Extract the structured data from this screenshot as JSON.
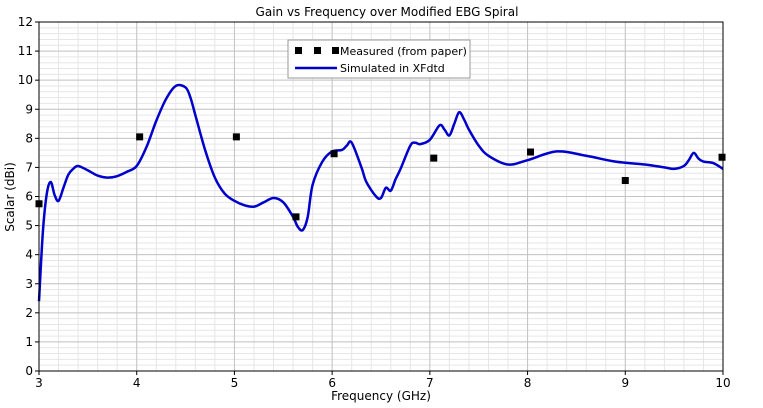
{
  "chart_data": {
    "type": "line",
    "title": "Gain vs Frequency over Modified EBG Spiral",
    "xlabel": "Frequency (GHz)",
    "ylabel": "Scalar (dBi)",
    "xlim": [
      3,
      10
    ],
    "ylim": [
      0,
      12
    ],
    "xticks": [
      "3",
      "4",
      "5",
      "6",
      "7",
      "8",
      "9",
      "10"
    ],
    "yticks": [
      "0",
      "1",
      "2",
      "3",
      "4",
      "5",
      "6",
      "7",
      "8",
      "9",
      "10",
      "11",
      "12"
    ],
    "grid": true,
    "legend_position": "top-center",
    "series": [
      {
        "name": "Measured (from paper)",
        "kind": "scatter",
        "marker": "square",
        "color": "#000000",
        "x": [
          3.0,
          4.03,
          5.02,
          5.63,
          6.02,
          7.04,
          8.03,
          9.0,
          9.99
        ],
        "y": [
          5.75,
          8.05,
          8.05,
          5.3,
          7.47,
          7.32,
          7.53,
          6.55,
          7.35
        ]
      },
      {
        "name": "Simulated in XFdtd",
        "kind": "line",
        "color": "#0000cc",
        "x": [
          3.0,
          3.04,
          3.08,
          3.12,
          3.16,
          3.2,
          3.25,
          3.3,
          3.35,
          3.4,
          3.5,
          3.6,
          3.7,
          3.8,
          3.9,
          4.0,
          4.1,
          4.2,
          4.3,
          4.4,
          4.5,
          4.55,
          4.6,
          4.7,
          4.8,
          4.9,
          5.0,
          5.1,
          5.2,
          5.3,
          5.4,
          5.5,
          5.6,
          5.65,
          5.7,
          5.75,
          5.8,
          5.9,
          6.0,
          6.1,
          6.15,
          6.2,
          6.3,
          6.35,
          6.45,
          6.5,
          6.55,
          6.6,
          6.65,
          6.7,
          6.8,
          6.85,
          6.9,
          7.0,
          7.1,
          7.15,
          7.2,
          7.25,
          7.3,
          7.35,
          7.4,
          7.5,
          7.6,
          7.8,
          8.0,
          8.3,
          8.6,
          8.9,
          9.2,
          9.4,
          9.5,
          9.6,
          9.65,
          9.7,
          9.75,
          9.8,
          9.9,
          10.0
        ],
        "y": [
          2.4,
          4.8,
          6.1,
          6.5,
          6.05,
          5.85,
          6.3,
          6.75,
          6.95,
          7.05,
          6.9,
          6.72,
          6.65,
          6.7,
          6.85,
          7.05,
          7.7,
          8.6,
          9.35,
          9.8,
          9.75,
          9.4,
          8.8,
          7.6,
          6.65,
          6.1,
          5.85,
          5.7,
          5.65,
          5.8,
          5.95,
          5.8,
          5.3,
          4.95,
          4.85,
          5.3,
          6.4,
          7.2,
          7.55,
          7.6,
          7.75,
          7.85,
          7.0,
          6.5,
          6.0,
          5.95,
          6.3,
          6.2,
          6.6,
          6.95,
          7.75,
          7.85,
          7.8,
          7.95,
          8.45,
          8.3,
          8.1,
          8.5,
          8.9,
          8.65,
          8.3,
          7.75,
          7.4,
          7.1,
          7.25,
          7.55,
          7.4,
          7.2,
          7.1,
          7.0,
          6.95,
          7.05,
          7.25,
          7.5,
          7.3,
          7.2,
          7.15,
          6.95
        ]
      }
    ]
  }
}
